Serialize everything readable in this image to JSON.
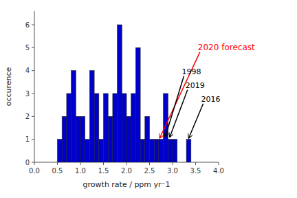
{
  "chart_data": {
    "type": "histogram",
    "bins": [
      0.5,
      0.6,
      0.7,
      0.8,
      0.9,
      1.0,
      1.1,
      1.2,
      1.3,
      1.4,
      1.5,
      1.6,
      1.7,
      1.8,
      1.9,
      2.0,
      2.1,
      2.2,
      2.3,
      2.4,
      2.5,
      2.6,
      2.7,
      2.8,
      2.9,
      3.0,
      3.1,
      3.2,
      3.3,
      3.4,
      3.5,
      3.6
    ],
    "values": [
      1,
      2,
      3,
      4,
      2,
      2,
      1,
      4,
      3,
      1,
      3,
      2,
      3,
      6,
      3,
      2,
      3,
      5,
      1,
      2,
      1,
      1,
      1,
      3,
      1,
      1,
      0,
      0,
      1,
      0,
      0
    ],
    "color": "#0000cc",
    "xlabel": "growth rate / ppm yr⁻1",
    "ylabel": "occurence",
    "xlim": [
      0.0,
      4.0
    ],
    "ylim": [
      0,
      6.6
    ],
    "xticks": [
      {
        "value": 0.0,
        "label": "0.0"
      },
      0.5,
      {
        "value": 1.0,
        "label": "1.0"
      },
      1.5,
      {
        "value": 2.0,
        "label": "2.0"
      },
      2.5,
      {
        "value": 3.0,
        "label": "3.0"
      },
      3.5,
      {
        "value": 4.0,
        "label": "4.0"
      }
    ],
    "yticks": [
      0,
      1,
      2,
      3,
      4,
      5,
      6
    ],
    "grid": false,
    "annotations": [
      {
        "text": "2020 forecast",
        "x": 2.72,
        "y": 1.05,
        "text_x": 3.55,
        "text_y": 4.9,
        "color": "red"
      },
      {
        "text": "1998",
        "x": 2.84,
        "y": 1.1,
        "text_x": 3.2,
        "text_y": 3.85,
        "color": "black"
      },
      {
        "text": "2019",
        "x": 2.94,
        "y": 1.1,
        "text_x": 3.28,
        "text_y": 3.25,
        "color": "black"
      },
      {
        "text": "2016",
        "x": 3.35,
        "y": 1.05,
        "text_x": 3.62,
        "text_y": 2.65,
        "color": "black"
      }
    ]
  }
}
